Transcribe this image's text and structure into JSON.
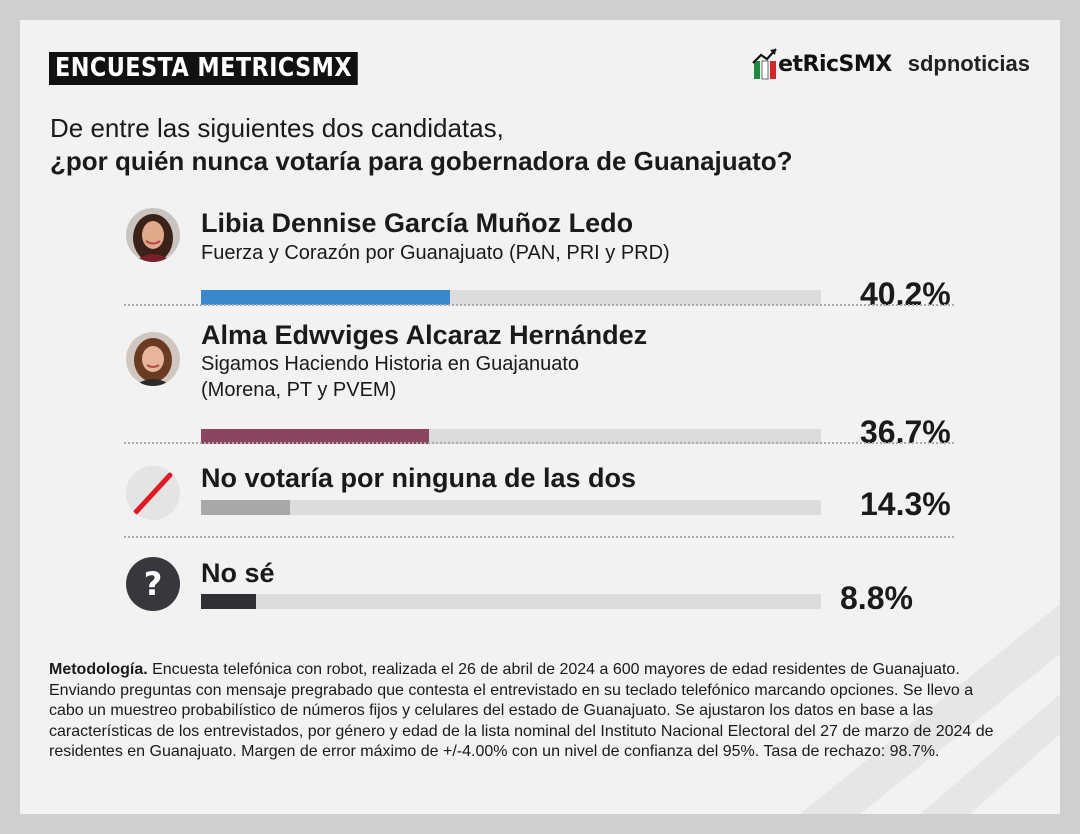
{
  "brand": {
    "survey_label": "ENCUESTA METRICSMX",
    "logo_metrics": "etRicSMX",
    "logo_sdp": "sdpnoticias"
  },
  "question": {
    "line1": "De entre las siguientes dos candidatas,",
    "line2": "¿por quién nunca votaría para gobernadora de Guanajuato?"
  },
  "chart_data": {
    "type": "bar",
    "orientation": "horizontal",
    "title": "¿por quién nunca votaría para gobernadora de Guanajuato?",
    "categories": [
      "Libia Dennise García Muñoz Ledo",
      "Alma Edwviges Alcaraz Hernández",
      "No votaría por ninguna de las dos",
      "No sé"
    ],
    "values": [
      40.2,
      36.7,
      14.3,
      8.8
    ],
    "value_labels": [
      "40.2%",
      "36.7%",
      "14.3%",
      "8.8%"
    ],
    "subtitles": [
      [
        "Fuerza y Corazón por Guanajuato (PAN, PRI y PRD)"
      ],
      [
        "Sigamos Haciendo Historia en Guajanuato",
        "(Morena, PT y PVEM)"
      ],
      [],
      []
    ],
    "colors": [
      "#3a87cc",
      "#8a4560",
      "#a8a8a8",
      "#2f2f35"
    ],
    "icons": [
      "candidate-photo",
      "candidate-photo",
      "slash-icon",
      "question-icon"
    ],
    "xlim": [
      0,
      100
    ],
    "grid": false,
    "legend": "none"
  },
  "icon_glyphs": {
    "question": "?"
  },
  "methodology": {
    "label": "Metodología.",
    "text": " Encuesta telefónica con robot, realizada el 26 de abril de 2024 a 600 mayores de edad residentes de Guanajuato. Enviando preguntas con mensaje pregrabado que contesta el entrevistado en su teclado telefónico marcando opciones. Se llevo a cabo un muestreo probabilístico de números fijos y celulares del estado de Guanajuato. Se ajustaron los datos en base a las características de los entrevistados, por género y edad de la lista nominal del Instituto Nacional Electoral del 27 de marzo de 2024 de residentes en Guanajuato. Margen de error máximo de +/-4.00% con un nivel de confianza del 95%. Tasa de rechazo: 98.7%."
  }
}
